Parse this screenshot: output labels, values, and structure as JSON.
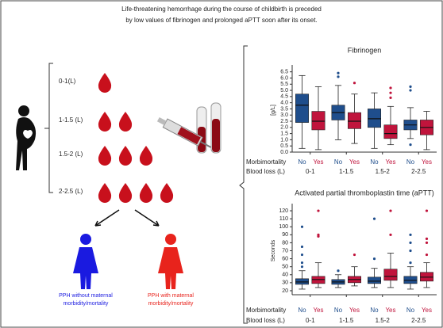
{
  "header": {
    "title_lines": [
      "Life-threatening hemorrhage during the course of childbirth is preceded",
      "by low values of fibrinogen and prolonged aPTT soon after its onset."
    ]
  },
  "diagram": {
    "blood_loss_labels": [
      "0-1(L)",
      "1-1.5 (L)",
      "1.5-2 (L)",
      "2-2.5 (L)"
    ],
    "outcomes": [
      {
        "lines": [
          "PPH without maternal",
          "morbidity/mortality"
        ],
        "color": "#1a1ae0"
      },
      {
        "lines": [
          "PPH with maternal",
          "morbidity/mortality"
        ],
        "color": "#e8231c"
      }
    ]
  },
  "chart_data": [
    {
      "type": "box",
      "title": "Fibrinogen",
      "y_label": "[g/L]",
      "row_labels": [
        "Morbimortality",
        "Blood loss (L)"
      ],
      "categories": [
        "0-1",
        "1-1.5",
        "1.5-2",
        "2-2.5"
      ],
      "ylim": [
        0,
        6.8
      ],
      "yticks": [
        {
          "value": 0,
          "label": "0.0"
        },
        0.5,
        {
          "value": 1,
          "label": "1.0"
        },
        1.5,
        {
          "value": 2,
          "label": "2.0"
        },
        2.5,
        {
          "value": 3,
          "label": "3.0"
        },
        3.5,
        {
          "value": 4,
          "label": "4.0"
        },
        4.5,
        {
          "value": 5,
          "label": "5.0"
        },
        5.5,
        {
          "value": 6,
          "label": "6.0"
        },
        6.5
      ],
      "series": [
        {
          "name": "No",
          "color": "#1f4e8c",
          "boxes": [
            {
              "whislo": 0.3,
              "q1": 2.4,
              "med": 3.8,
              "q3": 4.7,
              "whishi": 6.2,
              "fliers": []
            },
            {
              "whislo": 1.0,
              "q1": 2.6,
              "med": 3.2,
              "q3": 3.8,
              "whishi": 5.4,
              "fliers": [
                6.4,
                6.1
              ]
            },
            {
              "whislo": 0.3,
              "q1": 2.0,
              "med": 2.7,
              "q3": 3.5,
              "whishi": 4.8,
              "fliers": []
            },
            {
              "whislo": 1.1,
              "q1": 1.8,
              "med": 2.2,
              "q3": 2.6,
              "whishi": 3.6,
              "fliers": [
                5.3,
                5.0,
                0.6
              ]
            }
          ]
        },
        {
          "name": "Yes",
          "color": "#c0143c",
          "boxes": [
            {
              "whislo": 0.2,
              "q1": 1.8,
              "med": 2.5,
              "q3": 3.3,
              "whishi": 5.3,
              "fliers": []
            },
            {
              "whislo": 0.7,
              "q1": 1.9,
              "med": 2.5,
              "q3": 3.2,
              "whishi": 4.7,
              "fliers": [
                5.6
              ]
            },
            {
              "whislo": 0.6,
              "q1": 1.1,
              "med": 1.5,
              "q3": 2.2,
              "whishi": 3.7,
              "fliers": [
                5.2,
                4.8,
                4.4
              ]
            },
            {
              "whislo": 0.2,
              "q1": 1.4,
              "med": 2.0,
              "q3": 2.6,
              "whishi": 3.3,
              "fliers": []
            }
          ]
        }
      ]
    },
    {
      "type": "box",
      "title": "Activated partial thromboplastin time (aPTT)",
      "y_label": "Seconds",
      "row_labels": [
        "Morbimortality",
        "Blood loss (L)"
      ],
      "categories": [
        "0-1",
        "1-1.5",
        "1.5-2",
        "2-2.5"
      ],
      "ylim": [
        15,
        125
      ],
      "yticks": [
        20,
        30,
        40,
        50,
        60,
        70,
        80,
        90,
        100,
        110,
        120
      ],
      "series": [
        {
          "name": "No",
          "color": "#1f4e8c",
          "boxes": [
            {
              "whislo": 22,
              "q1": 28,
              "med": 31,
              "q3": 35,
              "whishi": 45,
              "fliers": [
                100,
                75,
                65,
                55,
                50
              ]
            },
            {
              "whislo": 24,
              "q1": 28,
              "med": 31,
              "q3": 34,
              "whishi": 40,
              "fliers": [
                45
              ]
            },
            {
              "whislo": 24,
              "q1": 29,
              "med": 32,
              "q3": 37,
              "whishi": 48,
              "fliers": [
                110,
                60
              ]
            },
            {
              "whislo": 22,
              "q1": 29,
              "med": 33,
              "q3": 38,
              "whishi": 50,
              "fliers": [
                90,
                80,
                70,
                55
              ]
            }
          ]
        },
        {
          "name": "Yes",
          "color": "#c0143c",
          "boxes": [
            {
              "whislo": 24,
              "q1": 29,
              "med": 34,
              "q3": 38,
              "whishi": 55,
              "fliers": [
                120,
                90,
                88
              ]
            },
            {
              "whislo": 26,
              "q1": 30,
              "med": 34,
              "q3": 38,
              "whishi": 50,
              "fliers": [
                65
              ]
            },
            {
              "whislo": 24,
              "q1": 33,
              "med": 38,
              "q3": 47,
              "whishi": 67,
              "fliers": [
                120,
                90
              ]
            },
            {
              "whislo": 24,
              "q1": 32,
              "med": 37,
              "q3": 43,
              "whishi": 55,
              "fliers": [
                120,
                85,
                80,
                65
              ]
            }
          ]
        }
      ]
    }
  ]
}
